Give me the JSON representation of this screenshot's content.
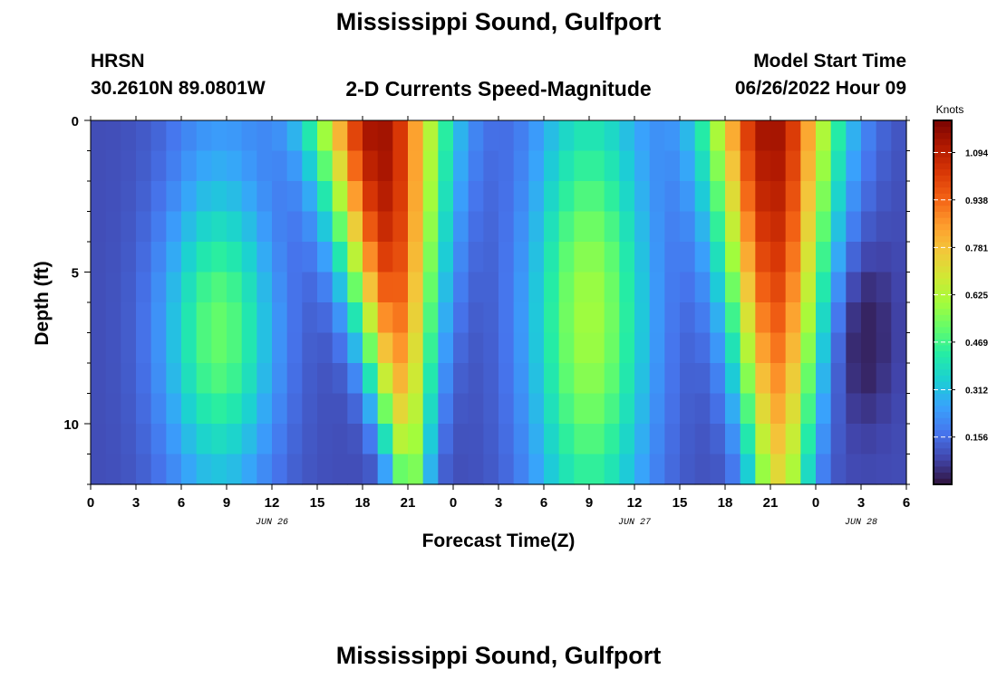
{
  "page": {
    "title": "Mississippi Sound, Gulfport",
    "title_repeat": "Mississippi Sound, Gulfport",
    "station_id": "HRSN",
    "station_coords": "30.2610N  89.0801W",
    "subtitle": "2-D Currents Speed-Magnitude",
    "model_label": "Model Start Time",
    "model_time": "06/26/2022 Hour 09"
  },
  "chart_data": {
    "type": "heatmap",
    "title": "2-D Currents Speed-Magnitude",
    "xlabel": "Forecast Time(Z)",
    "ylabel": "Depth (ft)",
    "x_tick_labels": [
      "0",
      "3",
      "6",
      "9",
      "12",
      "15",
      "18",
      "21",
      "0",
      "3",
      "6",
      "9",
      "12",
      "15",
      "18",
      "21",
      "0",
      "3",
      "6"
    ],
    "x_range_hours": [
      0,
      54
    ],
    "date_labels": [
      {
        "text": "JUN 26",
        "hour": 12
      },
      {
        "text": "JUN 27",
        "hour": 36
      },
      {
        "text": "JUN 28",
        "hour": 51
      }
    ],
    "y_tick_labels": [
      "0",
      "5",
      "10"
    ],
    "y_tick_values": [
      0,
      5,
      10
    ],
    "y_range_ft": [
      0,
      12
    ],
    "depth_levels_ft": [
      0.5,
      1.5,
      2.5,
      3.5,
      4.5,
      5.5,
      6.5,
      7.5,
      8.5,
      9.5,
      10.5,
      11.5
    ],
    "time_step_hours": 1,
    "colorbar": {
      "unit": "Knots",
      "ticks": [
        "0.156",
        "0.312",
        "0.469",
        "0.625",
        "0.781",
        "0.938",
        "1.094"
      ],
      "tick_values": [
        0.156,
        0.312,
        0.469,
        0.625,
        0.781,
        0.938,
        1.094
      ],
      "range": [
        0,
        1.2
      ],
      "colormap": [
        "#30123b",
        "#4145ab",
        "#4675ed",
        "#39a2fc",
        "#1bcfd4",
        "#24eca6",
        "#61fc6c",
        "#a4fc3b",
        "#d1e834",
        "#f3c63a",
        "#fe9b2d",
        "#f36315",
        "#d93806",
        "#b11901",
        "#7a0402"
      ]
    },
    "speed_model_knots": {
      "note": "values estimated from the rendered colour field",
      "floodA": {
        "near_surface": 1.05,
        "deep": 0.45
      },
      "floodB": {
        "near_surface": 1.05,
        "deep": 0.6
      },
      "slack_min": 0.1
    }
  }
}
